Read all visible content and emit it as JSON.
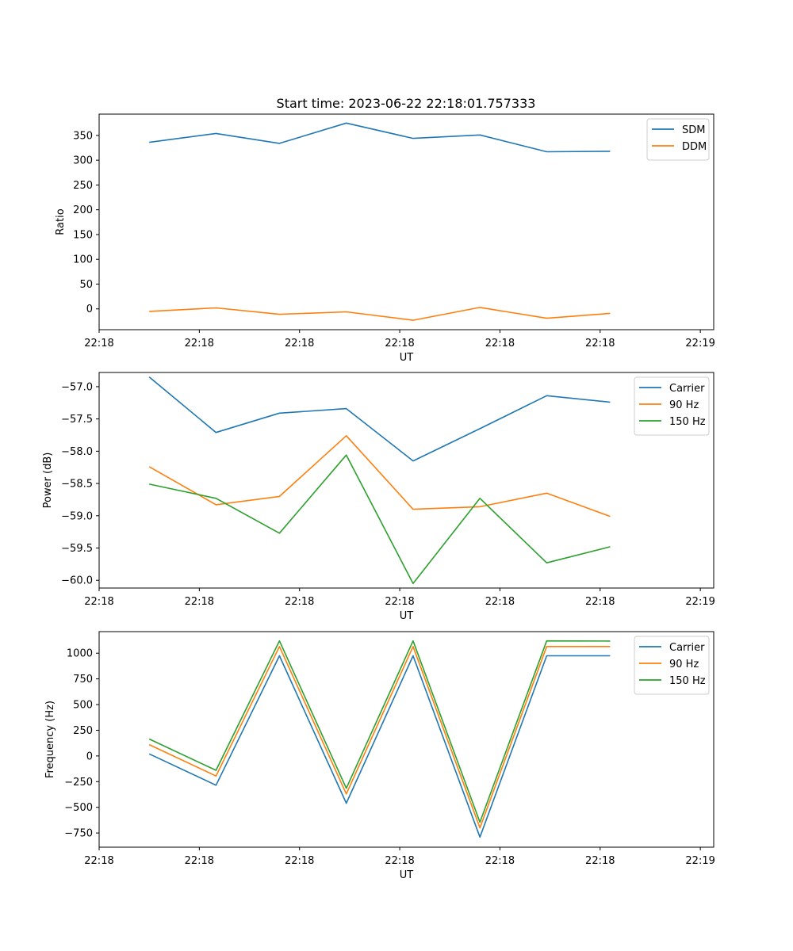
{
  "figure": {
    "title": "Start time: 2023-06-22 22:18:01.757333"
  },
  "chart_data": [
    {
      "type": "line",
      "title": "Start time: 2023-06-22 22:18:01.757333",
      "xlabel": "UT",
      "ylabel": "Ratio",
      "xlim": [
        0,
        9.2
      ],
      "x_ticks": [
        0.0,
        1.5,
        3.0,
        4.5,
        6.0,
        7.5,
        9.0
      ],
      "x_tick_labels": [
        "22:18",
        "22:18",
        "22:18",
        "22:18",
        "22:18",
        "22:18",
        "22:19"
      ],
      "ylim": [
        -42,
        393
      ],
      "y_ticks": [
        0,
        50,
        100,
        150,
        200,
        250,
        300,
        350
      ],
      "x": [
        0.75,
        1.75,
        2.7,
        3.7,
        4.7,
        5.7,
        6.7,
        7.65
      ],
      "series": [
        {
          "name": "SDM",
          "color": "#1f77b4",
          "values": [
            336,
            354,
            334,
            375,
            344,
            351,
            317,
            318
          ]
        },
        {
          "name": "DDM",
          "color": "#ff7f0e",
          "values": [
            -5,
            2,
            -11,
            -6,
            -23,
            3,
            -19,
            -9
          ]
        }
      ],
      "grid": false,
      "legend": "upper-right"
    },
    {
      "type": "line",
      "title": "",
      "xlabel": "UT",
      "ylabel": "Power (dB)",
      "xlim": [
        0,
        9.2
      ],
      "x_ticks": [
        0.0,
        1.5,
        3.0,
        4.5,
        6.0,
        7.5,
        9.0
      ],
      "x_tick_labels": [
        "22:18",
        "22:18",
        "22:18",
        "22:18",
        "22:18",
        "22:18",
        "22:19"
      ],
      "ylim": [
        -60.12,
        -56.78
      ],
      "y_ticks": [
        -60.0,
        -59.5,
        -59.0,
        -58.5,
        -58.0,
        -57.5,
        -57.0
      ],
      "y_tick_labels": [
        "−60.0",
        "−59.5",
        "−59.0",
        "−58.5",
        "−58.0",
        "−57.5",
        "−57.0"
      ],
      "x": [
        0.75,
        1.75,
        2.7,
        3.7,
        4.7,
        5.7,
        6.7,
        7.65
      ],
      "series": [
        {
          "name": "Carrier",
          "color": "#1f77b4",
          "values": [
            -56.85,
            -57.71,
            -57.41,
            -57.34,
            -58.15,
            -57.65,
            -57.14,
            -57.24
          ]
        },
        {
          "name": "90 Hz",
          "color": "#ff7f0e",
          "values": [
            -58.24,
            -58.83,
            -58.7,
            -57.76,
            -58.9,
            -58.86,
            -58.65,
            -59.01
          ]
        },
        {
          "name": "150 Hz",
          "color": "#2ca02c",
          "values": [
            -58.51,
            -58.73,
            -59.27,
            -58.06,
            -60.05,
            -58.73,
            -59.73,
            -59.48
          ]
        }
      ],
      "grid": false,
      "legend": "upper-right"
    },
    {
      "type": "line",
      "title": "",
      "xlabel": "UT",
      "ylabel": "Frequency (Hz)",
      "xlim": [
        0,
        9.2
      ],
      "x_ticks": [
        0.0,
        1.5,
        3.0,
        4.5,
        6.0,
        7.5,
        9.0
      ],
      "x_tick_labels": [
        "22:18",
        "22:18",
        "22:18",
        "22:18",
        "22:18",
        "22:18",
        "22:19"
      ],
      "ylim": [
        -888,
        1210
      ],
      "y_ticks": [
        -750,
        -500,
        -250,
        0,
        250,
        500,
        750,
        1000
      ],
      "y_tick_labels": [
        "−750",
        "−500",
        "−250",
        "0",
        "250",
        "500",
        "750",
        "1000"
      ],
      "x": [
        0.75,
        1.75,
        2.7,
        3.7,
        4.7,
        5.7,
        6.7,
        7.65
      ],
      "series": [
        {
          "name": "Carrier",
          "color": "#1f77b4",
          "values": [
            20,
            -285,
            975,
            -460,
            975,
            -790,
            975,
            975
          ]
        },
        {
          "name": "90 Hz",
          "color": "#ff7f0e",
          "values": [
            110,
            -195,
            1065,
            -370,
            1065,
            -700,
            1065,
            1065
          ]
        },
        {
          "name": "150 Hz",
          "color": "#2ca02c",
          "values": [
            165,
            -140,
            1120,
            -315,
            1120,
            -645,
            1120,
            1118
          ]
        }
      ],
      "grid": false,
      "legend": "upper-right"
    }
  ]
}
